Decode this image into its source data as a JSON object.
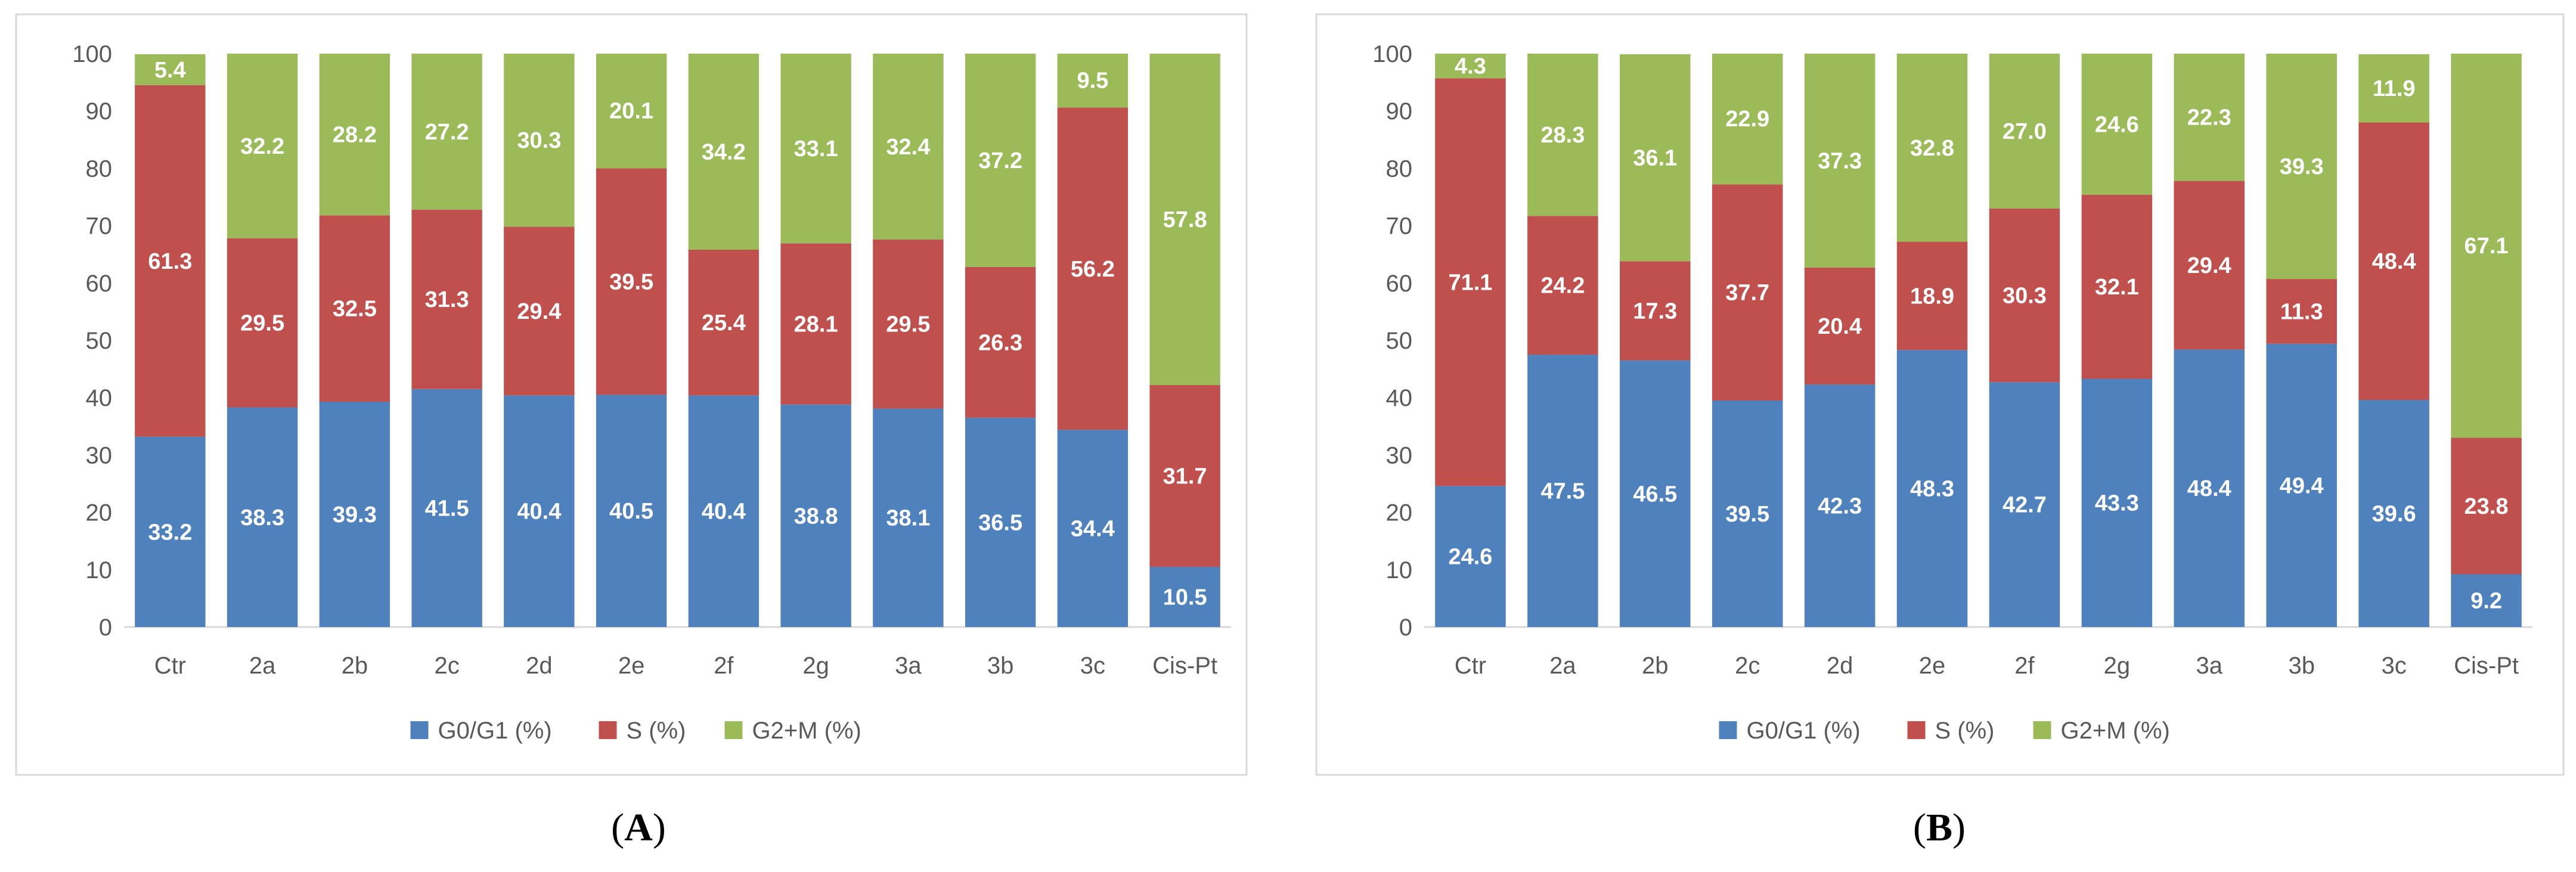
{
  "chart_data": [
    {
      "type": "bar",
      "stacked": true,
      "panel_label": "(A)",
      "categories": [
        "Ctr",
        "2a",
        "2b",
        "2c",
        "2d",
        "2e",
        "2f",
        "2g",
        "3a",
        "3b",
        "3c",
        "Cis-Pt"
      ],
      "series": [
        {
          "name": "G0/G1  (%)",
          "color": "#4f81bd",
          "values": [
            33.2,
            38.3,
            39.3,
            41.5,
            40.4,
            40.5,
            40.4,
            38.8,
            38.1,
            36.5,
            34.4,
            10.5
          ]
        },
        {
          "name": "S (%)",
          "color": "#c0504d",
          "values": [
            61.3,
            29.5,
            32.5,
            31.3,
            29.4,
            39.5,
            25.4,
            28.1,
            29.5,
            26.3,
            56.2,
            31.7
          ]
        },
        {
          "name": "G2+M (%)",
          "color": "#9bbb59",
          "values": [
            5.4,
            32.2,
            28.2,
            27.2,
            30.3,
            20.1,
            34.2,
            33.1,
            32.4,
            37.2,
            9.5,
            57.8
          ]
        }
      ],
      "ylim": [
        0,
        100
      ],
      "yticks": [
        0,
        10,
        20,
        30,
        40,
        50,
        60,
        70,
        80,
        90,
        100
      ],
      "legend": "bottom"
    },
    {
      "type": "bar",
      "stacked": true,
      "panel_label": "(B)",
      "categories": [
        "Ctr",
        "2a",
        "2b",
        "2c",
        "2d",
        "2e",
        "2f",
        "2g",
        "3a",
        "3b",
        "3c",
        "Cis-Pt"
      ],
      "series": [
        {
          "name": "G0/G1  (%)",
          "color": "#4f81bd",
          "values": [
            24.6,
            47.5,
            46.5,
            39.5,
            42.3,
            48.3,
            42.7,
            43.3,
            48.4,
            49.4,
            39.6,
            9.2
          ]
        },
        {
          "name": "S (%)",
          "color": "#c0504d",
          "values": [
            71.1,
            24.2,
            17.3,
            37.7,
            20.4,
            18.9,
            30.3,
            32.1,
            29.4,
            11.3,
            48.4,
            23.8
          ]
        },
        {
          "name": "G2+M (%)",
          "color": "#9bbb59",
          "values": [
            4.3,
            28.3,
            36.1,
            22.9,
            37.3,
            32.8,
            27.0,
            24.6,
            22.3,
            39.3,
            11.9,
            67.1
          ]
        }
      ],
      "ylim": [
        0,
        100
      ],
      "yticks": [
        0,
        10,
        20,
        30,
        40,
        50,
        60,
        70,
        80,
        90,
        100
      ],
      "legend": "bottom"
    }
  ]
}
